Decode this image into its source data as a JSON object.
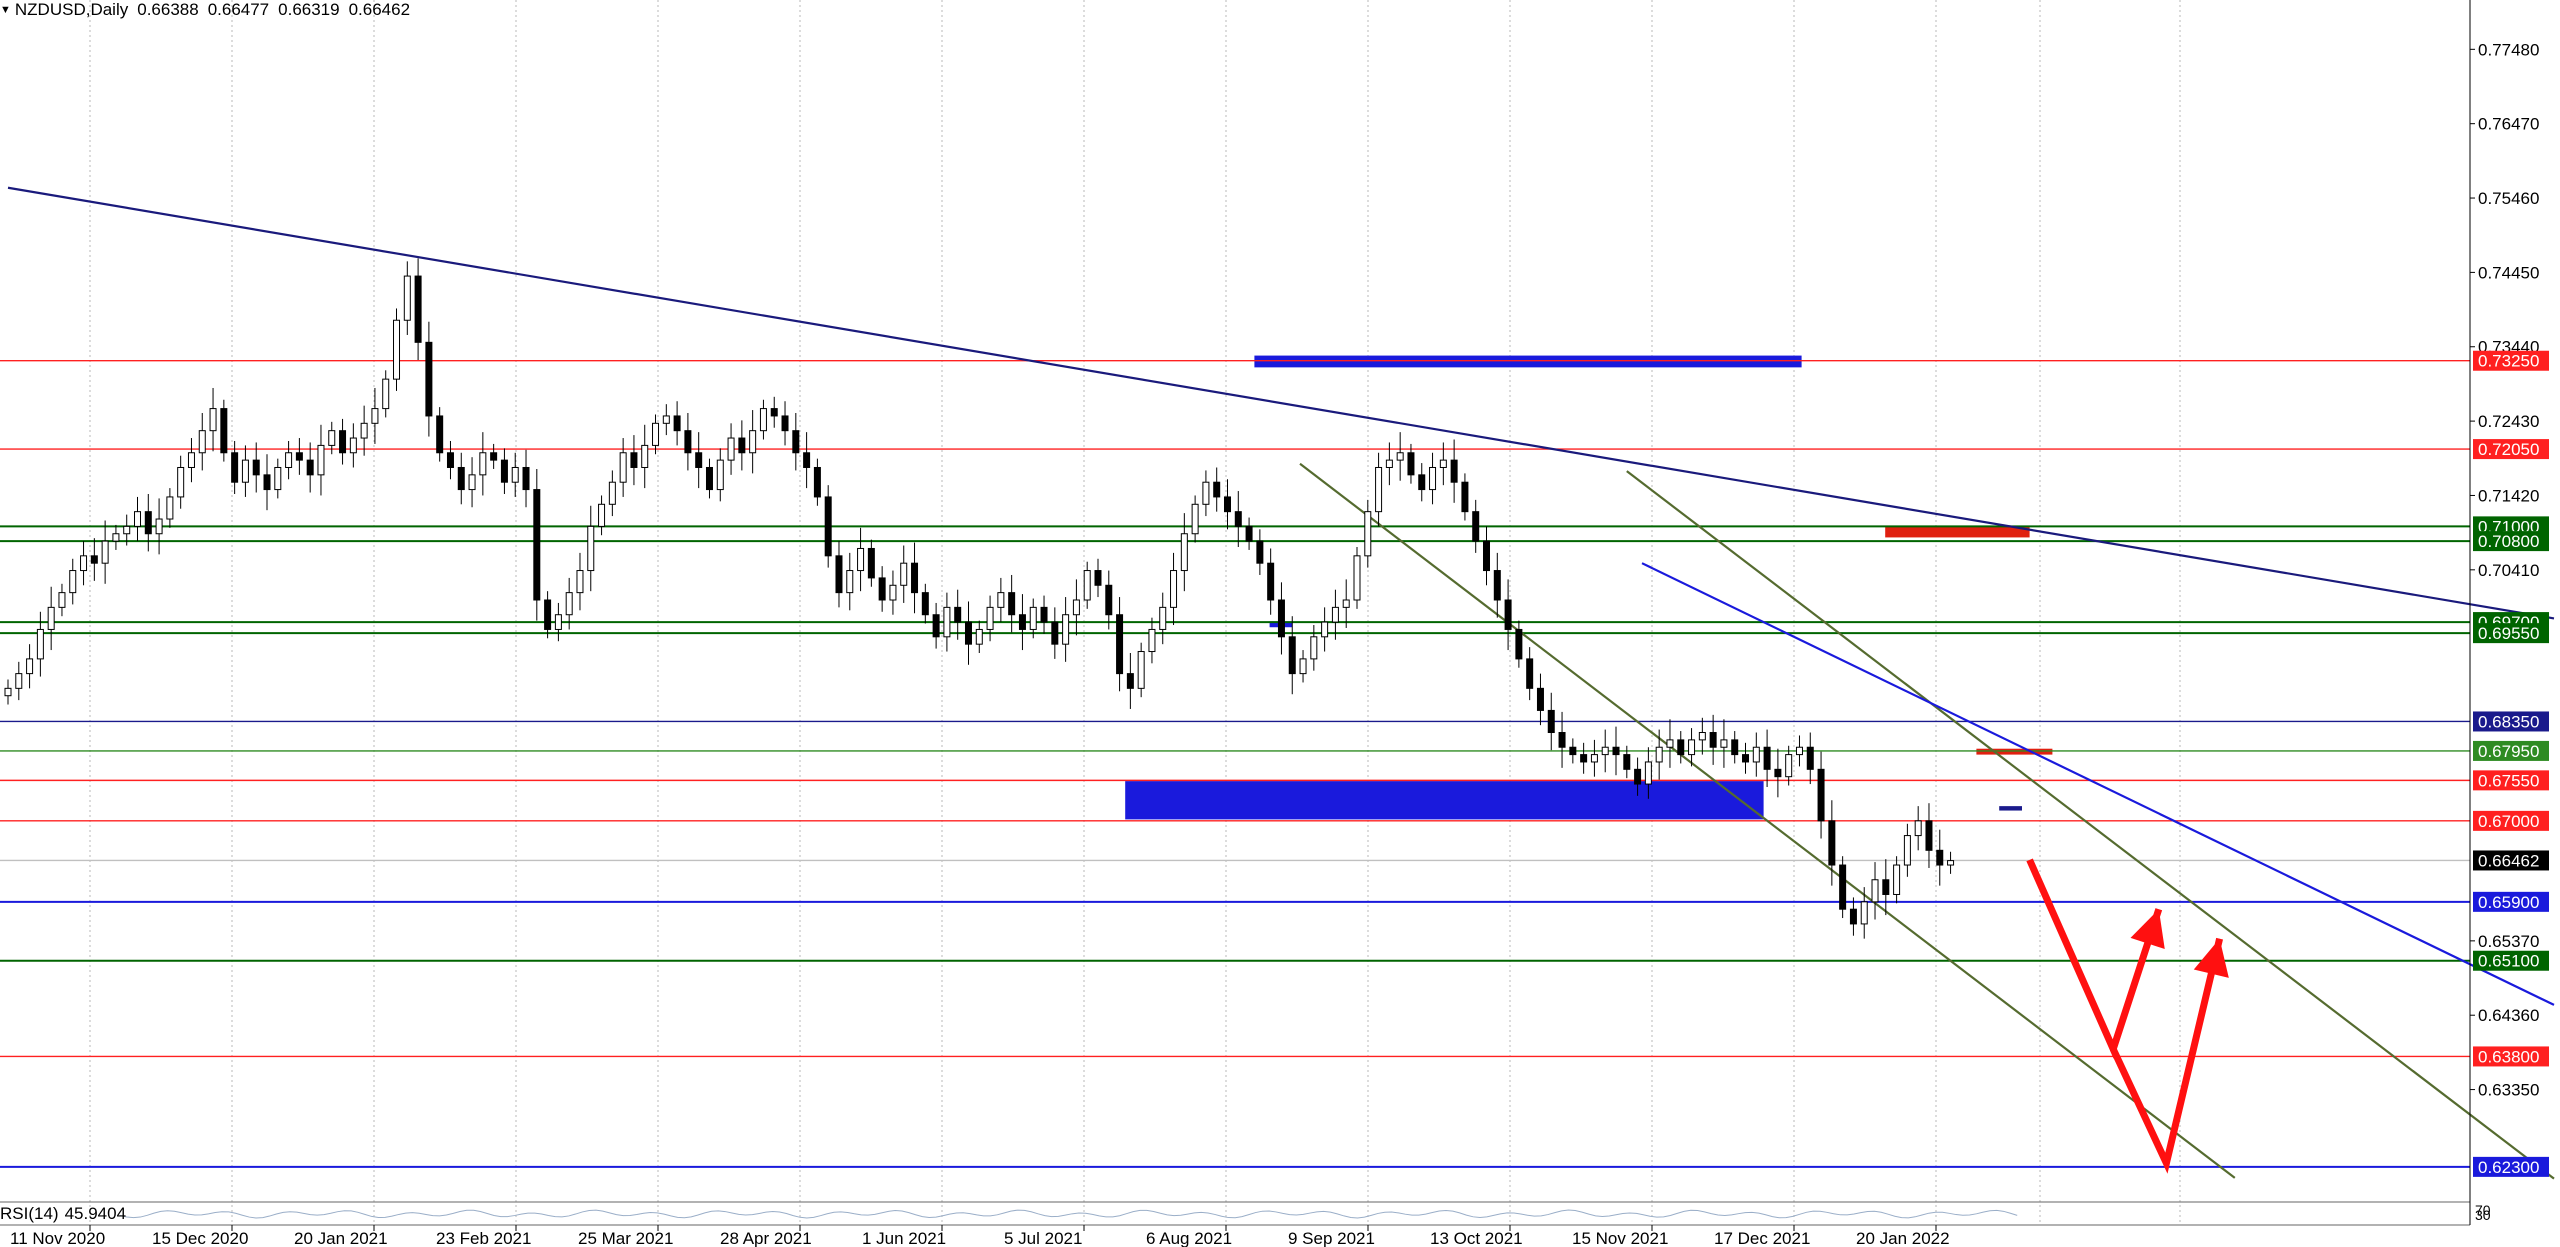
{
  "header": {
    "symbol_tf": "NZDUSD,Daily",
    "open": "0.66388",
    "high": "0.66477",
    "low": "0.66319",
    "close": "0.66462"
  },
  "indicator": {
    "name": "RSI(14)",
    "value": "45.9404",
    "levels": [
      "70",
      "30"
    ]
  },
  "chart_data": {
    "type": "candlestick",
    "symbol": "NZDUSD",
    "timeframe": "Daily",
    "ylim": [
      0.6185,
      0.7815
    ],
    "grid": "vertical dotted",
    "y_ticks": [
      0.7748,
      0.7647,
      0.7546,
      0.7445,
      0.7344,
      0.7243,
      0.7142,
      0.7041,
      0.6537,
      0.6436,
      0.6335
    ],
    "x_ticks": [
      "11 Nov 2020",
      "15 Dec 2020",
      "20 Jan 2021",
      "23 Feb 2021",
      "25 Mar 2021",
      "28 Apr 2021",
      "1 Jun 2021",
      "5 Jul 2021",
      "6 Aug 2021",
      "9 Sep 2021",
      "13 Oct 2021",
      "15 Nov 2021",
      "17 Dec 2021",
      "20 Jan 2022"
    ],
    "horizontal_levels": [
      {
        "price": 0.7325,
        "color": "#ff2020",
        "label": "0.73250",
        "label_bg": "#ff2020"
      },
      {
        "price": 0.7205,
        "color": "#ff2020",
        "label": "0.72050",
        "label_bg": "#ff2020"
      },
      {
        "price": 0.71,
        "color": "#006400",
        "label": "0.71000",
        "label_bg": "#006400"
      },
      {
        "price": 0.708,
        "color": "#006400",
        "label": "0.70800",
        "label_bg": "#006400"
      },
      {
        "price": 0.697,
        "color": "#006400",
        "label": "0.69700",
        "label_bg": "#006400"
      },
      {
        "price": 0.6955,
        "color": "#006400",
        "label": "0.69550",
        "label_bg": "#006400"
      },
      {
        "price": 0.6835,
        "color": "#1a1a8c",
        "label": "0.68350",
        "label_bg": "#1a1a8c"
      },
      {
        "price": 0.6795,
        "color": "#2e8b22",
        "label": "0.67950",
        "label_bg": "#2e8b22"
      },
      {
        "price": 0.6755,
        "color": "#ff2020",
        "label": "0.67550",
        "label_bg": "#ff2020"
      },
      {
        "price": 0.67,
        "color": "#ff2020",
        "label": "0.67000",
        "label_bg": "#ff2020"
      },
      {
        "price": 0.66462,
        "color": "#c0c0c0",
        "label": "0.66462",
        "label_bg": "#000000"
      },
      {
        "price": 0.659,
        "color": "#1a1adc",
        "label": "0.65900",
        "label_bg": "#1a1adc"
      },
      {
        "price": 0.651,
        "color": "#006400",
        "label": "0.65100",
        "label_bg": "#006400"
      },
      {
        "price": 0.638,
        "color": "#ff2020",
        "label": "0.63800",
        "label_bg": "#ff2020"
      },
      {
        "price": 0.623,
        "color": "#1a1adc",
        "label": "0.62300",
        "label_bg": "#1a1adc"
      }
    ],
    "trendlines": [
      {
        "name": "long-term-resistance",
        "color": "#1a1a7c",
        "from": [
          0,
          0.756
        ],
        "to": [
          335,
          0.6975
        ]
      },
      {
        "name": "channel-upper",
        "color": "#556b2f",
        "from": [
          213,
          0.7175
        ],
        "to": [
          335,
          0.6214
        ]
      },
      {
        "name": "channel-lower",
        "color": "#556b2f",
        "from": [
          170,
          0.7185
        ],
        "to": [
          293,
          0.6215
        ]
      },
      {
        "name": "short-term-resistance",
        "color": "#1a1adc",
        "from": [
          215,
          0.705
        ],
        "to": [
          335,
          0.645
        ]
      }
    ],
    "zones": [
      {
        "color": "#1a1adc",
        "from": [
          164,
          0.7332
        ],
        "to": [
          236,
          0.7316
        ]
      },
      {
        "color": "#1a1adc",
        "from": [
          147,
          0.6754
        ],
        "to": [
          231,
          0.6702
        ]
      },
      {
        "color": "#e02010",
        "from": [
          247,
          0.71
        ],
        "to": [
          266,
          0.7085
        ]
      },
      {
        "color": "#e02010",
        "from": [
          259,
          0.6798
        ],
        "to": [
          269,
          0.679
        ]
      },
      {
        "color": "#1a1adc",
        "from": [
          166,
          0.6971
        ],
        "to": [
          169,
          0.6963
        ]
      },
      {
        "color": "#1a1a8c",
        "from": [
          262,
          0.672
        ],
        "to": [
          265,
          0.6714
        ]
      }
    ],
    "projection_arrows": {
      "color": "#ff1010",
      "path": [
        [
          266,
          0.6647
        ],
        [
          277,
          0.639
        ],
        [
          283,
          0.658
        ]
      ],
      "path2": [
        [
          277,
          0.639
        ],
        [
          284,
          0.6235
        ],
        [
          291,
          0.654
        ]
      ]
    },
    "series_hint": "approximate daily closes, Nov 2020 to Feb 2022",
    "closes": [
      0.688,
      0.69,
      0.692,
      0.696,
      0.699,
      0.701,
      0.704,
      0.706,
      0.705,
      0.708,
      0.709,
      0.71,
      0.712,
      0.709,
      0.711,
      0.714,
      0.718,
      0.72,
      0.723,
      0.726,
      0.72,
      0.716,
      0.719,
      0.717,
      0.715,
      0.718,
      0.72,
      0.719,
      0.717,
      0.721,
      0.723,
      0.72,
      0.722,
      0.724,
      0.726,
      0.73,
      0.738,
      0.744,
      0.735,
      0.725,
      0.72,
      0.718,
      0.715,
      0.717,
      0.72,
      0.719,
      0.716,
      0.718,
      0.715,
      0.7,
      0.696,
      0.698,
      0.701,
      0.704,
      0.71,
      0.713,
      0.716,
      0.72,
      0.718,
      0.721,
      0.724,
      0.725,
      0.723,
      0.72,
      0.718,
      0.715,
      0.719,
      0.722,
      0.72,
      0.723,
      0.726,
      0.725,
      0.723,
      0.72,
      0.718,
      0.714,
      0.706,
      0.701,
      0.704,
      0.707,
      0.703,
      0.7,
      0.702,
      0.705,
      0.701,
      0.698,
      0.695,
      0.699,
      0.697,
      0.694,
      0.696,
      0.699,
      0.701,
      0.698,
      0.696,
      0.699,
      0.697,
      0.694,
      0.698,
      0.7,
      0.704,
      0.702,
      0.698,
      0.69,
      0.688,
      0.693,
      0.696,
      0.699,
      0.704,
      0.709,
      0.713,
      0.716,
      0.714,
      0.712,
      0.71,
      0.708,
      0.705,
      0.7,
      0.695,
      0.69,
      0.692,
      0.695,
      0.697,
      0.699,
      0.7,
      0.706,
      0.712,
      0.718,
      0.719,
      0.72,
      0.717,
      0.715,
      0.718,
      0.719,
      0.716,
      0.712,
      0.708,
      0.704,
      0.7,
      0.696,
      0.692,
      0.688,
      0.685,
      0.682,
      0.68,
      0.679,
      0.678,
      0.679,
      0.68,
      0.679,
      0.677,
      0.675,
      0.678,
      0.68,
      0.681,
      0.679,
      0.681,
      0.682,
      0.68,
      0.681,
      0.679,
      0.678,
      0.68,
      0.677,
      0.676,
      0.679,
      0.68,
      0.677,
      0.67,
      0.664,
      0.658,
      0.656,
      0.659,
      0.662,
      0.66,
      0.664,
      0.668,
      0.67,
      0.666,
      0.664,
      0.6646
    ]
  }
}
